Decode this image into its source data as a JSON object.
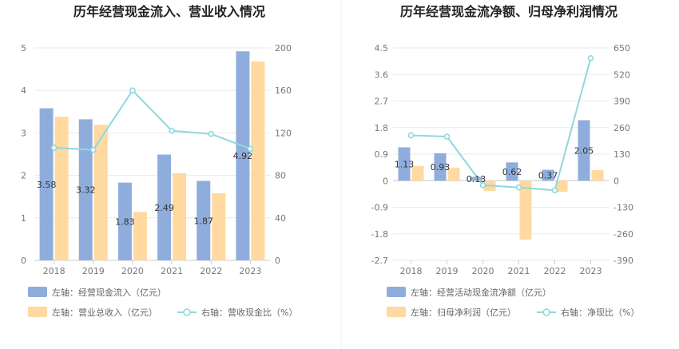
{
  "colors": {
    "bar_blue": "#8faddc",
    "bar_orange": "#ffd9a0",
    "line_teal": "#8fd8dc",
    "grid": "#e9e9e9",
    "axis": "#cccccc",
    "divider": "#eeeeee"
  },
  "chart_data": [
    {
      "type": "bar",
      "title": "历年经营现金流入、营业收入情况",
      "categories": [
        "2018",
        "2019",
        "2020",
        "2021",
        "2022",
        "2023"
      ],
      "left_axis": {
        "ylim": [
          0,
          5
        ],
        "ticks": [
          "0",
          "1",
          "2",
          "3",
          "4",
          "5"
        ]
      },
      "right_axis": {
        "ylim": [
          0,
          200
        ],
        "ticks": [
          "0",
          "40",
          "80",
          "120",
          "160",
          "200"
        ]
      },
      "series": [
        {
          "name": "左轴：经营现金流入（亿元）",
          "kind": "bar",
          "axis": "left",
          "values": [
            3.58,
            3.32,
            1.83,
            2.49,
            1.87,
            4.92
          ],
          "labels": [
            "3.58",
            "3.32",
            "1.83",
            "2.49",
            "1.87",
            "4.92"
          ]
        },
        {
          "name": "左轴：营业总收入（亿元）",
          "kind": "bar",
          "axis": "left",
          "values": [
            3.38,
            3.19,
            1.14,
            2.05,
            1.58,
            4.68
          ]
        },
        {
          "name": "右轴：营收现金比（%）",
          "kind": "line",
          "axis": "right",
          "values": [
            106,
            104,
            160,
            122,
            119,
            105
          ]
        }
      ],
      "grid": true,
      "legend_position": "bottom"
    },
    {
      "type": "bar",
      "title": "历年经营现金流净额、归母净利润情况",
      "categories": [
        "2018",
        "2019",
        "2020",
        "2021",
        "2022",
        "2023"
      ],
      "left_axis": {
        "ylim": [
          -2.7,
          4.5
        ],
        "ticks": [
          "-2.7",
          "-1.8",
          "-0.9",
          "0",
          "0.9",
          "1.8",
          "2.7",
          "3.6",
          "4.5"
        ]
      },
      "right_axis": {
        "ylim": [
          -390,
          650
        ],
        "ticks": [
          "-390",
          "-260",
          "-130",
          "0",
          "130",
          "260",
          "390",
          "520",
          "650"
        ]
      },
      "series": [
        {
          "name": "左轴：经营活动现金流净额（亿元）",
          "kind": "bar",
          "axis": "left",
          "values": [
            1.13,
            0.93,
            0.13,
            0.62,
            0.37,
            2.05
          ],
          "labels": [
            "1.13",
            "0.93",
            "0.13",
            "0.62",
            "0.37",
            "2.05"
          ]
        },
        {
          "name": "左轴：归母净利润（亿元）",
          "kind": "bar",
          "axis": "left",
          "values": [
            0.5,
            0.43,
            -0.35,
            -2.0,
            -0.38,
            0.36
          ]
        },
        {
          "name": "右轴：净现比（%）",
          "kind": "line",
          "axis": "right",
          "values": [
            222,
            216,
            -22,
            -33,
            -47,
            600
          ]
        }
      ],
      "grid": true,
      "legend_position": "bottom"
    }
  ]
}
